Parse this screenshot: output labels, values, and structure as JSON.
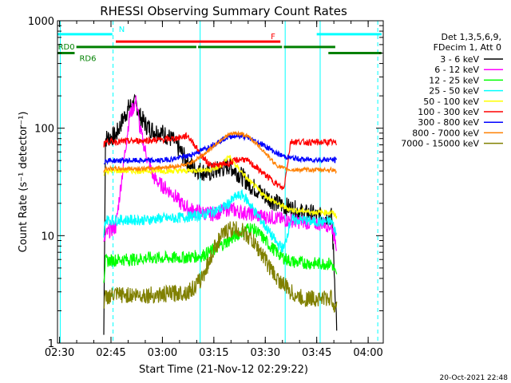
{
  "chart_data": {
    "type": "line",
    "title": "RHESSI Observing Summary Count Rates",
    "xlabel": "Start Time (21-Nov-12 02:29:22)",
    "ylabel": "Count Rate (s⁻¹ detector⁻¹)",
    "x_unit": "minutes after 02:29:22",
    "xlim": [
      0,
      95
    ],
    "ylim": [
      1,
      1000
    ],
    "y_scale": "log",
    "grid": false,
    "legend_position": "right",
    "x_ticks": [
      {
        "value": 0.6,
        "label": "02:30"
      },
      {
        "value": 15.6,
        "label": "02:45"
      },
      {
        "value": 30.6,
        "label": "03:00"
      },
      {
        "value": 45.6,
        "label": "03:15"
      },
      {
        "value": 60.6,
        "label": "03:30"
      },
      {
        "value": 75.6,
        "label": "03:45"
      },
      {
        "value": 90.6,
        "label": "04:00"
      }
    ],
    "y_ticks": [
      {
        "value": 1,
        "label": "1"
      },
      {
        "value": 10,
        "label": "10"
      },
      {
        "value": 100,
        "label": "100"
      },
      {
        "value": 1000,
        "label": "1000"
      }
    ],
    "legend_header": [
      "Det 1,3,5,6,9,",
      "FDecim 1, Att 0"
    ],
    "footer": "20-Oct-2021 22:48",
    "series": [
      {
        "name": "3 - 6 keV",
        "color": "#000000",
        "x": [
          13.5,
          14,
          15,
          17,
          19,
          21,
          23,
          24,
          26,
          28,
          30,
          32,
          34,
          36,
          38,
          40,
          42,
          44,
          46,
          48,
          50,
          52,
          54,
          56,
          58,
          60,
          62,
          64,
          66,
          68,
          70,
          72,
          74,
          76,
          78,
          80,
          81.5
        ],
        "y": [
          1.2,
          80,
          82,
          85,
          120,
          160,
          170,
          130,
          105,
          95,
          92,
          85,
          75,
          60,
          48,
          42,
          40,
          38,
          40,
          42,
          45,
          40,
          35,
          30,
          27,
          24,
          22,
          20,
          19,
          18,
          17,
          16,
          16,
          15,
          15,
          15,
          1.3
        ]
      },
      {
        "name": "6 - 12 keV",
        "color": "#ff00ff",
        "x": [
          13.5,
          14,
          15,
          17,
          19,
          21,
          23,
          24,
          26,
          28,
          30,
          32,
          34,
          36,
          38,
          40,
          42,
          44,
          46,
          48,
          50,
          52,
          54,
          56,
          58,
          60,
          62,
          64,
          66,
          68,
          70,
          72,
          74,
          76,
          78,
          80,
          81.5
        ],
        "y": [
          8,
          10,
          11,
          12,
          40,
          130,
          180,
          100,
          55,
          35,
          30,
          27,
          24,
          20,
          18,
          17,
          16.5,
          16,
          16,
          17,
          18,
          17,
          16.5,
          16,
          15.5,
          15,
          15,
          14.5,
          14,
          14,
          13.5,
          13.5,
          13,
          13,
          13,
          12,
          8
        ]
      },
      {
        "name": "12 - 25 keV",
        "color": "#00ff00",
        "x": [
          13.5,
          14,
          18,
          22,
          26,
          30,
          34,
          38,
          42,
          46,
          50,
          54,
          56,
          58,
          60,
          62,
          64,
          66,
          68,
          70,
          72,
          74,
          76,
          78,
          80,
          81.5
        ],
        "y": [
          4,
          5.8,
          6,
          6,
          6.2,
          6.2,
          6.2,
          6.3,
          6.5,
          7.5,
          9,
          11,
          12,
          11,
          9.5,
          8,
          7,
          6.2,
          5.8,
          5.6,
          5.6,
          5.5,
          5.5,
          5.5,
          5.5,
          4
        ]
      },
      {
        "name": "25 - 50 keV",
        "color": "#00ffff",
        "x": [
          13.5,
          14,
          18,
          22,
          26,
          30,
          34,
          38,
          42,
          46,
          48,
          50,
          52,
          54,
          56,
          58,
          60,
          62,
          64,
          66,
          68,
          70,
          72,
          74,
          76,
          78,
          80,
          81.5
        ],
        "y": [
          10,
          14,
          14,
          14,
          14,
          14.5,
          14.5,
          15,
          15.5,
          17,
          18,
          20,
          23,
          24,
          20,
          16,
          13,
          10.5,
          8.5,
          7.5,
          14,
          14,
          14,
          13.5,
          13.5,
          13.5,
          13.5,
          10
        ]
      },
      {
        "name": "50 - 100 keV",
        "color": "#ffff00",
        "x": [
          13.5,
          14,
          18,
          22,
          26,
          30,
          34,
          38,
          42,
          44,
          46,
          48,
          50,
          52,
          54,
          56,
          58,
          60,
          62,
          64,
          66,
          68,
          70,
          72,
          74,
          76,
          78,
          80,
          81.5
        ],
        "y": [
          38,
          40,
          40,
          40,
          40,
          40,
          40,
          40,
          41,
          41,
          42,
          45,
          55,
          45,
          38,
          32,
          28,
          24,
          22,
          20,
          18.5,
          17.5,
          17,
          17,
          16.5,
          16.5,
          16.5,
          16.5,
          15
        ]
      },
      {
        "name": "100 - 300 keV",
        "color": "#ff0000",
        "x": [
          13.5,
          14,
          18,
          22,
          26,
          30,
          34,
          38,
          40,
          42,
          44,
          46,
          48,
          50,
          52,
          54,
          56,
          58,
          60,
          62,
          64,
          66,
          68,
          70,
          72,
          74,
          76,
          78,
          80,
          81.5
        ],
        "y": [
          70,
          75,
          75,
          76,
          77,
          78,
          80,
          85,
          70,
          55,
          47,
          45,
          46,
          47,
          50,
          52,
          48,
          43,
          38,
          34,
          30,
          27,
          75,
          75,
          74,
          74,
          74,
          74,
          74,
          72
        ]
      },
      {
        "name": "300 - 800 keV",
        "color": "#0000ff",
        "x": [
          13.5,
          14,
          18,
          22,
          26,
          30,
          34,
          38,
          42,
          46,
          48,
          50,
          52,
          54,
          56,
          58,
          60,
          62,
          64,
          66,
          68,
          70,
          72,
          74,
          76,
          78,
          80,
          81.5
        ],
        "y": [
          48,
          50,
          50,
          50,
          50,
          50,
          52,
          55,
          62,
          72,
          78,
          83,
          85,
          84,
          80,
          75,
          70,
          64,
          58,
          55,
          53,
          52,
          51,
          51,
          51,
          51,
          51,
          50
        ]
      },
      {
        "name": "800 - 7000 keV",
        "color": "#ff8000",
        "x": [
          13.5,
          14,
          18,
          22,
          26,
          30,
          34,
          38,
          42,
          46,
          48,
          50,
          52,
          54,
          56,
          58,
          60,
          62,
          64,
          66,
          68,
          70,
          72,
          74,
          76,
          78,
          80,
          81.5
        ],
        "y": [
          40,
          42,
          42,
          42,
          42,
          43,
          44,
          46,
          55,
          70,
          80,
          87,
          90,
          88,
          82,
          72,
          62,
          52,
          45,
          42,
          41,
          41,
          41,
          41,
          41,
          41,
          41,
          40
        ]
      },
      {
        "name": "7000 - 15000 keV",
        "color": "#808000",
        "x": [
          13.5,
          14,
          18,
          22,
          26,
          30,
          34,
          38,
          40,
          42,
          44,
          46,
          48,
          50,
          52,
          54,
          56,
          58,
          60,
          62,
          64,
          66,
          68,
          70,
          72,
          74,
          76,
          78,
          80,
          81.5
        ],
        "y": [
          2,
          2.7,
          2.8,
          2.8,
          2.8,
          2.8,
          2.9,
          3,
          3.3,
          4,
          5.5,
          8,
          10,
          11.5,
          11.5,
          11,
          9.5,
          8,
          6.5,
          5,
          4,
          3.5,
          3,
          2.7,
          2.6,
          2.6,
          2.6,
          2.6,
          2.6,
          2
        ]
      }
    ],
    "annotations": [
      {
        "label": "N",
        "color": "#00ffff",
        "segments": [
          [
            0,
            16
          ]
        ],
        "y": 750
      },
      {
        "label": "",
        "color": "#00ffff",
        "segments": [
          [
            75.6,
            94.5
          ]
        ],
        "y": 750
      },
      {
        "label": "F",
        "color": "#ff0000",
        "segments": [
          [
            17,
            65
          ]
        ],
        "y": 640
      },
      {
        "label": "RD0",
        "color": "#008000",
        "segments": [
          [
            5.5,
            40.5
          ],
          [
            41,
            65.5
          ],
          [
            66,
            81
          ]
        ],
        "y": 570
      },
      {
        "label": "RD6",
        "color": "#008000",
        "segments": [
          [
            0,
            5
          ],
          [
            79,
            94.5
          ]
        ],
        "y": 500
      }
    ],
    "vlines": [
      {
        "x": 16.2,
        "color": "#00ffff",
        "style": "dashed"
      },
      {
        "x": 0.8,
        "color": "#00ffff",
        "style": "solid"
      },
      {
        "x": 41.6,
        "color": "#00ffff",
        "style": "solid"
      },
      {
        "x": 66.4,
        "color": "#00ffff",
        "style": "solid"
      },
      {
        "x": 76.6,
        "color": "#00ffff",
        "style": "solid"
      },
      {
        "x": 93.4,
        "color": "#00ffff",
        "style": "dashed"
      }
    ]
  }
}
